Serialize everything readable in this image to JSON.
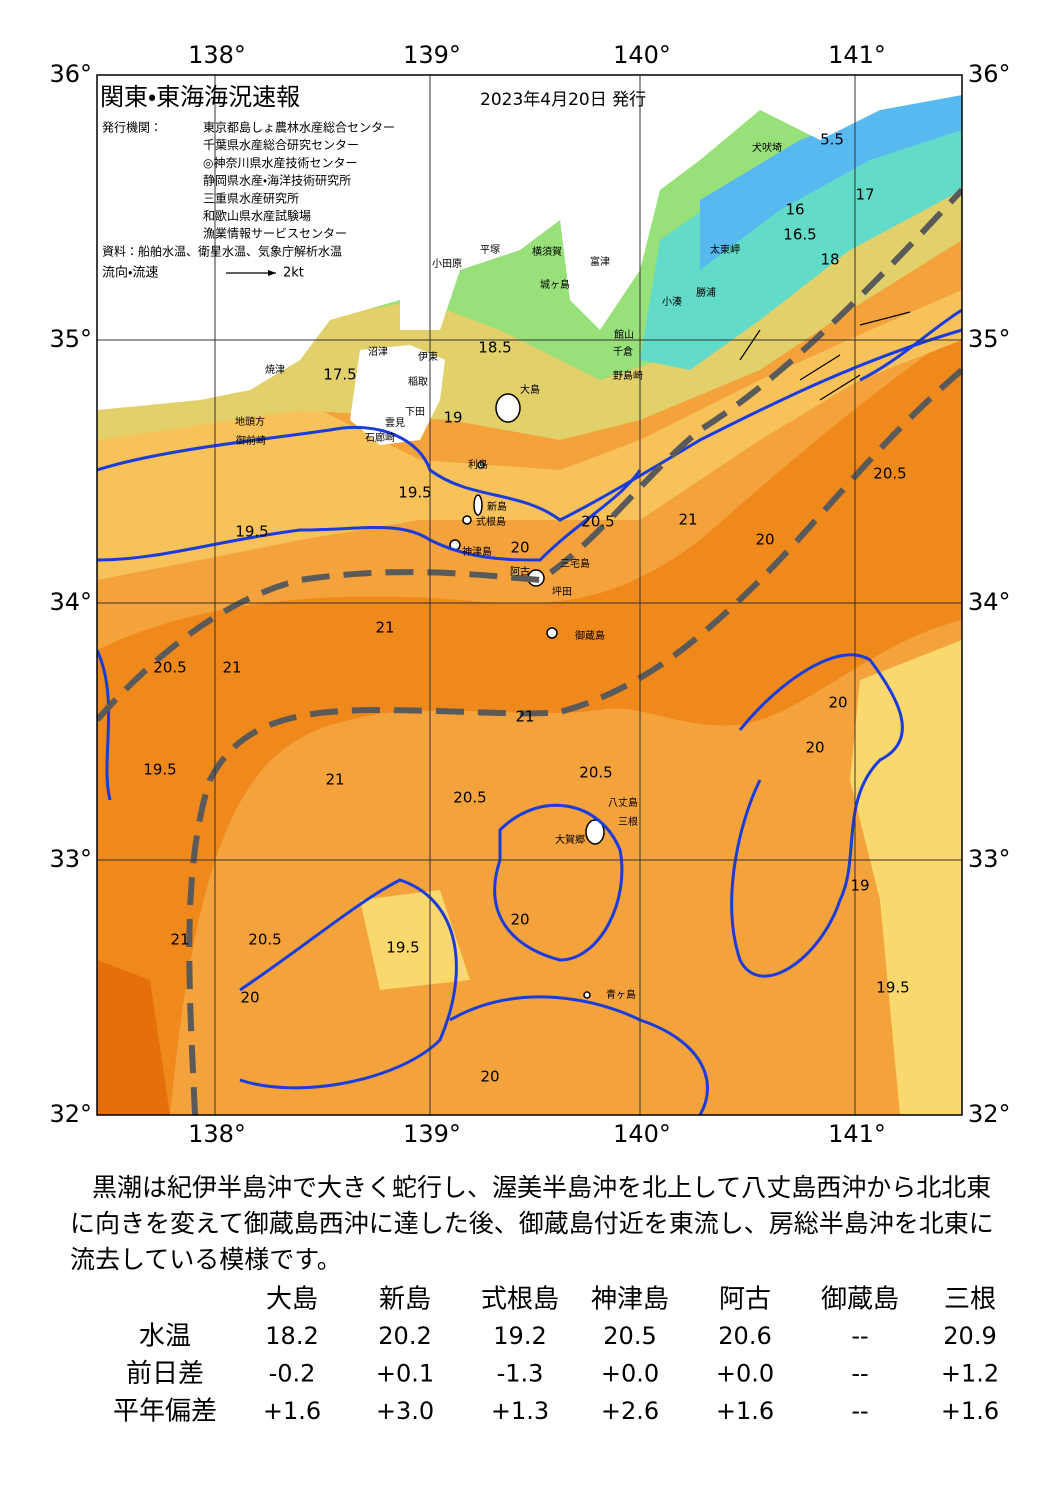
{
  "header": {
    "title": "関東・東海海況速報",
    "date": "2023年4月20日 発行"
  },
  "issuers": {
    "label": "発行機関：",
    "names": [
      "東京都島しょ農林水産総合センター",
      "千葉県水産総合研究センター",
      "◎神奈川県水産技術センター",
      "静岡県水産・海洋技術研究所",
      "三重県水産研究所",
      "和歌山県水産試験場",
      "漁業情報サービスセンター"
    ]
  },
  "source": "資料：船舶水温、衛星水温、気象庁解析水温",
  "legend": {
    "label": "流向・流速",
    "speed": "2kt"
  },
  "map": {
    "lon_labels": [
      "138°",
      "139°",
      "140°",
      "141°"
    ],
    "lat_labels": [
      "36°",
      "35°",
      "34°",
      "33°",
      "32°"
    ],
    "places": [
      "大島",
      "利島",
      "新島",
      "式根島",
      "神津島",
      "三宅島",
      "阿古",
      "坪田",
      "御蔵島",
      "八丈島",
      "三根",
      "大賀郷",
      "青ヶ島",
      "犬吠埼",
      "太東岬",
      "勝浦",
      "小湊",
      "館山",
      "千倉",
      "野島崎",
      "富津",
      "横須賀",
      "城ヶ島",
      "平塚",
      "小田原",
      "伊東",
      "稲取",
      "下田",
      "石廊崎",
      "雲見",
      "沼津",
      "焼津",
      "地頭方",
      "御前崎"
    ],
    "contour_labels": [
      "5.5",
      "16",
      "16.5",
      "17",
      "17.5",
      "18",
      "18.5",
      "19",
      "19.5",
      "20",
      "20.5",
      "21",
      "21",
      "20.5",
      "20.5",
      "20",
      "20",
      "19.5",
      "19.5",
      "19",
      "20.5",
      "21",
      "21",
      "20.5",
      "20",
      "19.5",
      "20",
      "20.5",
      "21",
      "20",
      "21",
      "19.5",
      "20"
    ]
  },
  "summary": "黒潮は紀伊半島沖で大きく蛇行し、渥美半島沖を北上して八丈島西沖から北北東に向きを変えて御蔵島西沖に達した後、御蔵島付近を東流し、房総半島沖を北東に流去している模様です。",
  "table": {
    "columns": [
      "大島",
      "新島",
      "式根島",
      "神津島",
      "阿古",
      "御蔵島",
      "三根"
    ],
    "rows": [
      {
        "label": "水温",
        "cells": [
          "18.2",
          "20.2",
          "19.2",
          "20.5",
          "20.6",
          "--",
          "20.9"
        ]
      },
      {
        "label": "前日差",
        "cells": [
          "-0.2",
          "+0.1",
          "-1.3",
          "+0.0",
          "+0.0",
          "--",
          "+1.2"
        ]
      },
      {
        "label": "平年偏差",
        "cells": [
          "+1.6",
          "+3.0",
          "+1.3",
          "+2.6",
          "+1.6",
          "--",
          "+1.6"
        ]
      }
    ]
  }
}
